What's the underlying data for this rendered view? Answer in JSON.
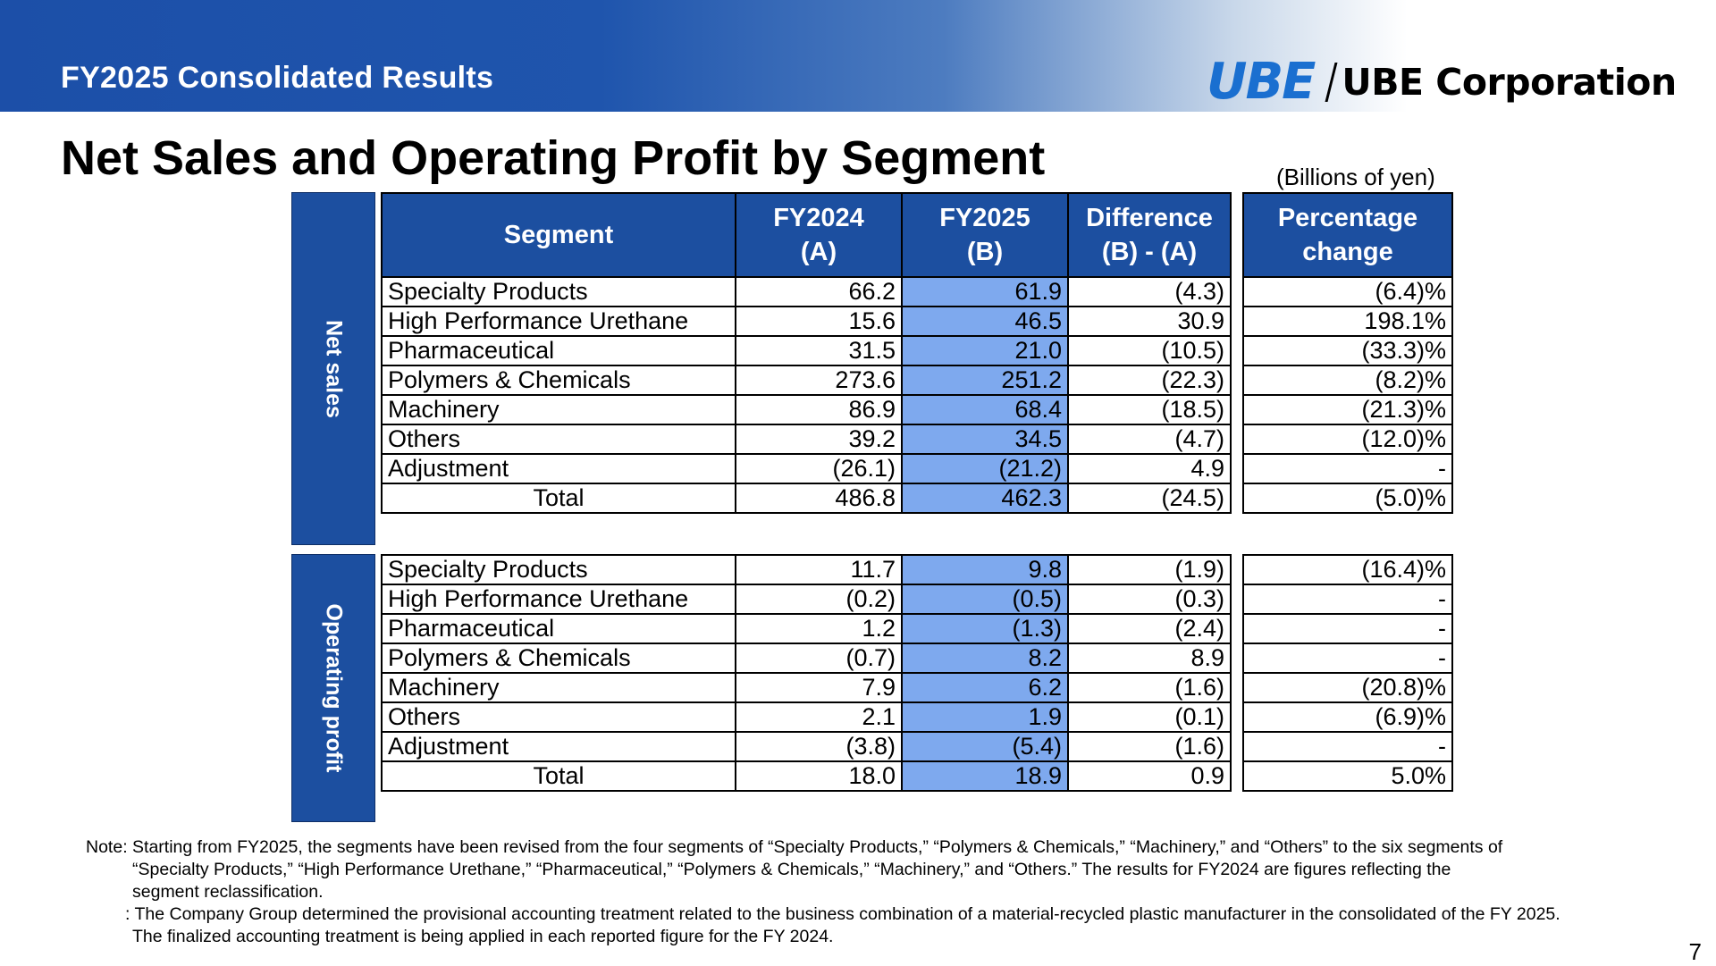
{
  "banner": {
    "title": "FY2025 Consolidated Results"
  },
  "logo": {
    "mark": "UBE",
    "name": "UBE Corporation"
  },
  "page_title": "Net Sales and Operating Profit by Segment",
  "units": "(Billions of yen)",
  "side_labels": {
    "net_sales": "Net sales",
    "operating_profit": "Operating profit"
  },
  "headers": {
    "segment": "Segment",
    "fy2024": "FY2024",
    "fy2024_sub": "(A)",
    "fy2025": "FY2025",
    "fy2025_sub": "(B)",
    "diff": "Difference",
    "diff_sub": "(B) - (A)",
    "pct": "Percentage",
    "pct_sub": "change"
  },
  "net_sales": [
    {
      "segment": "Specialty Products",
      "a": "66.2",
      "b": "61.9",
      "diff": "(4.3)",
      "pct": "(6.4)%"
    },
    {
      "segment": "High Performance Urethane",
      "a": "15.6",
      "b": "46.5",
      "diff": "30.9",
      "pct": "198.1%"
    },
    {
      "segment": "Pharmaceutical",
      "a": "31.5",
      "b": "21.0",
      "diff": "(10.5)",
      "pct": "(33.3)%"
    },
    {
      "segment": "Polymers & Chemicals",
      "a": "273.6",
      "b": "251.2",
      "diff": "(22.3)",
      "pct": "(8.2)%"
    },
    {
      "segment": "Machinery",
      "a": "86.9",
      "b": "68.4",
      "diff": "(18.5)",
      "pct": "(21.3)%"
    },
    {
      "segment": "Others",
      "a": "39.2",
      "b": "34.5",
      "diff": "(4.7)",
      "pct": "(12.0)%"
    },
    {
      "segment": "Adjustment",
      "a": "(26.1)",
      "b": "(21.2)",
      "diff": "4.9",
      "pct": "-"
    },
    {
      "segment": "Total",
      "a": "486.8",
      "b": "462.3",
      "diff": "(24.5)",
      "pct": "(5.0)%"
    }
  ],
  "operating_profit": [
    {
      "segment": "Specialty Products",
      "a": "11.7",
      "b": "9.8",
      "diff": "(1.9)",
      "pct": "(16.4)%"
    },
    {
      "segment": "High Performance Urethane",
      "a": "(0.2)",
      "b": "(0.5)",
      "diff": "(0.3)",
      "pct": "-"
    },
    {
      "segment": "Pharmaceutical",
      "a": "1.2",
      "b": "(1.3)",
      "diff": "(2.4)",
      "pct": "-"
    },
    {
      "segment": "Polymers & Chemicals",
      "a": "(0.7)",
      "b": "8.2",
      "diff": "8.9",
      "pct": "-"
    },
    {
      "segment": "Machinery",
      "a": "7.9",
      "b": "6.2",
      "diff": "(1.6)",
      "pct": "(20.8)%"
    },
    {
      "segment": "Others",
      "a": "2.1",
      "b": "1.9",
      "diff": "(0.1)",
      "pct": "(6.9)%"
    },
    {
      "segment": "Adjustment",
      "a": "(3.8)",
      "b": "(5.4)",
      "diff": "(1.6)",
      "pct": "-"
    },
    {
      "segment": "Total",
      "a": "18.0",
      "b": "18.9",
      "diff": "0.9",
      "pct": "5.0%"
    }
  ],
  "notes": {
    "n1_line1": "Note: Starting from FY2025, the segments have been revised from the four segments of “Specialty Products,” “Polymers & Chemicals,” “Machinery,” and “Others” to the six segments of",
    "n1_line2": "“Specialty Products,” “High Performance Urethane,” “Pharmaceutical,” “Polymers & Chemicals,” “Machinery,” and “Others.” The results for FY2024 are figures reflecting the",
    "n1_line3": "segment reclassification.",
    "n2_line1": ": The Company Group determined the provisional accounting treatment related to the business combination of a material-recycled plastic manufacturer in the consolidated of the FY 2025.",
    "n2_line2": "The finalized accounting treatment is being applied in each reported figure for the FY 2024."
  },
  "page_number": "7"
}
